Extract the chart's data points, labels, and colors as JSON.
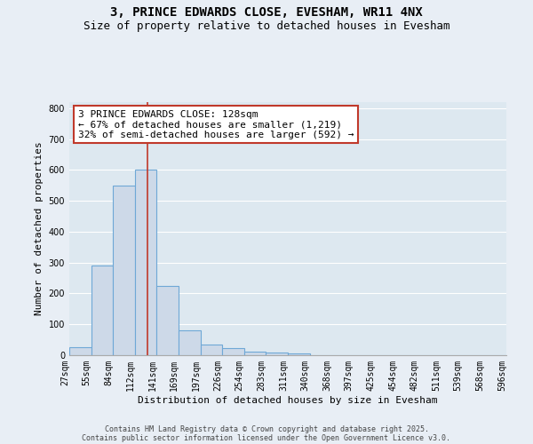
{
  "title_line1": "3, PRINCE EDWARDS CLOSE, EVESHAM, WR11 4NX",
  "title_line2": "Size of property relative to detached houses in Evesham",
  "bar_values": [
    25,
    290,
    550,
    600,
    225,
    80,
    35,
    22,
    12,
    9,
    7,
    0,
    0,
    0,
    0,
    0,
    0,
    0,
    0,
    0
  ],
  "bar_labels": [
    "27sqm",
    "55sqm",
    "84sqm",
    "112sqm",
    "141sqm",
    "169sqm",
    "197sqm",
    "226sqm",
    "254sqm",
    "283sqm",
    "311sqm",
    "340sqm",
    "368sqm",
    "397sqm",
    "425sqm",
    "454sqm",
    "482sqm",
    "511sqm",
    "539sqm",
    "568sqm",
    "596sqm"
  ],
  "bar_color": "#cdd9e8",
  "bar_edge_color": "#6fa8d6",
  "ylabel": "Number of detached properties",
  "xlabel": "Distribution of detached houses by size in Evesham",
  "ylim": [
    0,
    820
  ],
  "yticks": [
    0,
    100,
    200,
    300,
    400,
    500,
    600,
    700,
    800
  ],
  "vline_x": 3.57,
  "vline_color": "#c0392b",
  "annotation_text": "3 PRINCE EDWARDS CLOSE: 128sqm\n← 67% of detached houses are smaller (1,219)\n32% of semi-detached houses are larger (592) →",
  "annotation_box_color": "#ffffff",
  "annotation_box_edge_color": "#c0392b",
  "footer_line1": "Contains HM Land Registry data © Crown copyright and database right 2025.",
  "footer_line2": "Contains public sector information licensed under the Open Government Licence v3.0.",
  "background_color": "#e8eef5",
  "plot_bg_color": "#dde8f0",
  "grid_color": "#ffffff",
  "title_fontsize": 10,
  "subtitle_fontsize": 9,
  "axis_fontsize": 8,
  "tick_fontsize": 7,
  "footer_fontsize": 6,
  "annotation_fontsize": 8
}
